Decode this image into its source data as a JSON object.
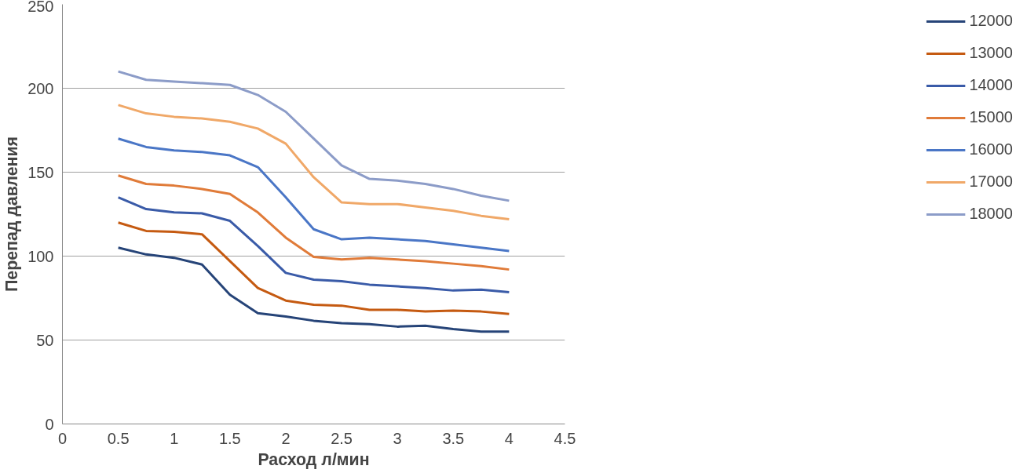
{
  "chart_data": {
    "type": "line",
    "xlabel": "Расход л/мин",
    "ylabel": "Перепад давления",
    "x": [
      0.5,
      0.75,
      1,
      1.25,
      1.5,
      1.75,
      2,
      2.25,
      2.5,
      2.75,
      3,
      3.25,
      3.5,
      3.75,
      4
    ],
    "xlim": [
      0,
      4.5
    ],
    "xticks": [
      0,
      0.5,
      1,
      1.5,
      2,
      2.5,
      3,
      3.5,
      4,
      4.5
    ],
    "ylim": [
      0,
      250
    ],
    "yticks": [
      0,
      50,
      100,
      150,
      200,
      250
    ],
    "grid": "y",
    "legend": "right",
    "marker": "none",
    "line_style": "solid",
    "series": [
      {
        "name": "12000",
        "color": "#264478",
        "values": [
          105,
          101,
          99,
          95,
          77,
          66,
          64,
          61.5,
          60,
          59.5,
          58,
          58.5,
          56.5,
          55,
          55
        ]
      },
      {
        "name": "13000",
        "color": "#c55a11",
        "values": [
          120,
          115,
          114.5,
          113,
          97,
          81,
          73.5,
          71,
          70.5,
          68,
          68,
          67,
          67.5,
          67,
          65.5
        ]
      },
      {
        "name": "14000",
        "color": "#3a5ba8",
        "values": [
          135,
          128,
          126,
          125.5,
          121,
          106,
          90,
          86,
          85,
          83,
          82,
          81,
          79.5,
          80,
          78.5
        ]
      },
      {
        "name": "15000",
        "color": "#e07b39",
        "values": [
          148,
          143,
          142,
          140,
          137,
          126,
          111,
          99.5,
          98,
          99,
          98,
          97,
          95.5,
          94,
          92
        ]
      },
      {
        "name": "16000",
        "color": "#4a76c6",
        "values": [
          170,
          165,
          163,
          162,
          160,
          153,
          135,
          116,
          110,
          111,
          110,
          109,
          107,
          105,
          103
        ]
      },
      {
        "name": "17000",
        "color": "#f0a868",
        "values": [
          190,
          185,
          183,
          182,
          180,
          176,
          167,
          147,
          132,
          131,
          131,
          129,
          127,
          124,
          122
        ]
      },
      {
        "name": "18000",
        "color": "#8c9cc8",
        "values": [
          210,
          205,
          204,
          203,
          202,
          196,
          186,
          170,
          154,
          146,
          145,
          143,
          140,
          136,
          133
        ]
      }
    ]
  }
}
